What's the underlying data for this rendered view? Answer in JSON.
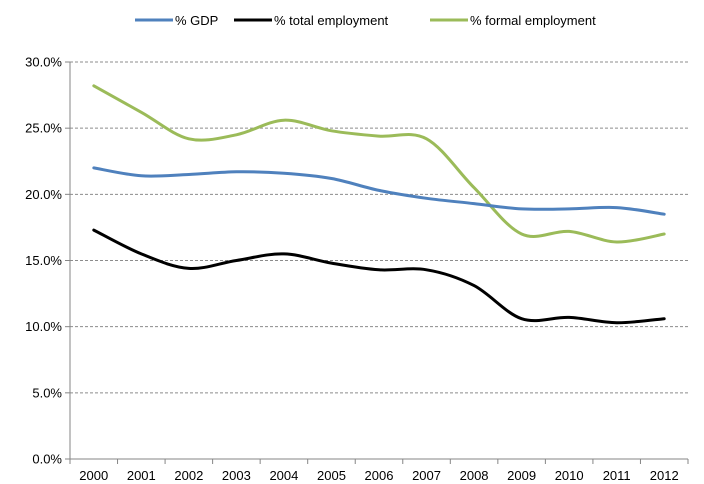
{
  "chart_data": {
    "type": "line",
    "title": "",
    "xlabel": "",
    "ylabel": "",
    "x": [
      "2000",
      "2001",
      "2002",
      "2003",
      "2004",
      "2005",
      "2006",
      "2007",
      "2008",
      "2009",
      "2010",
      "2011",
      "2012"
    ],
    "ylim": [
      0,
      0.3
    ],
    "yticks": [
      "0.0%",
      "5.0%",
      "10.0%",
      "15.0%",
      "20.0%",
      "25.0%",
      "30.0%"
    ],
    "grid": "horizontal dashed",
    "legend_position": "top",
    "series": [
      {
        "name": "% GDP",
        "color": "#4f81bd",
        "values": [
          0.22,
          0.214,
          0.215,
          0.217,
          0.216,
          0.212,
          0.203,
          0.197,
          0.193,
          0.189,
          0.189,
          0.19,
          0.185
        ]
      },
      {
        "name": "% total employment",
        "color": "#000000",
        "values": [
          0.173,
          0.155,
          0.144,
          0.15,
          0.155,
          0.148,
          0.143,
          0.143,
          0.131,
          0.106,
          0.107,
          0.103,
          0.106
        ]
      },
      {
        "name": "% formal employment",
        "color": "#9bbb59",
        "values": [
          0.282,
          0.262,
          0.242,
          0.245,
          0.256,
          0.248,
          0.244,
          0.242,
          0.205,
          0.17,
          0.172,
          0.164,
          0.17
        ]
      }
    ]
  }
}
